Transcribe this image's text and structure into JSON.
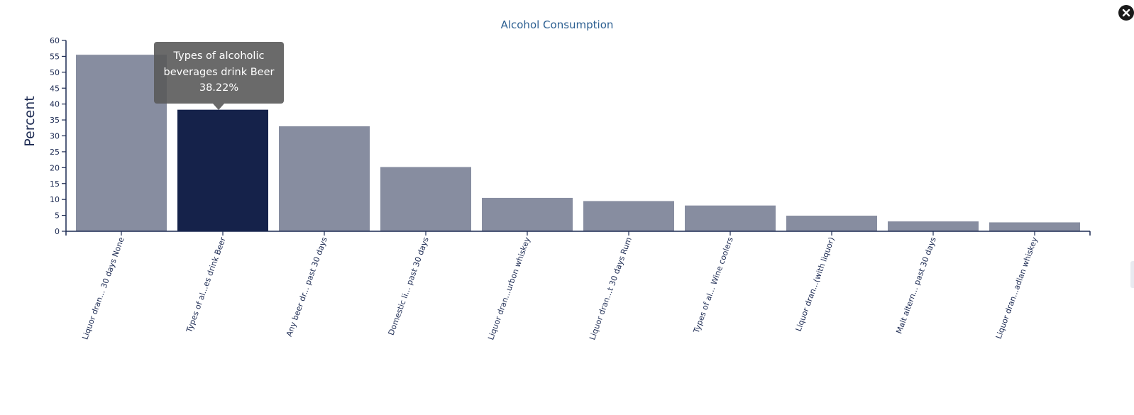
{
  "colors": {
    "bar": "#878da0",
    "bar_highlight": "#15224a",
    "axis": "#1c2a52",
    "title": "#2c5f91",
    "text": "#1c2a52"
  },
  "icons": {
    "close": "close-icon"
  },
  "tooltip": {
    "line1": "Types of alcoholic",
    "line2": "beverages drink Beer",
    "line3": "38.22%"
  },
  "chart_data": {
    "type": "bar",
    "title": "Alcohol Consumption",
    "xlabel": "",
    "ylabel": "Percent",
    "ylim": [
      0,
      60
    ],
    "yticks": [
      0,
      5,
      10,
      15,
      20,
      25,
      30,
      35,
      40,
      45,
      50,
      55,
      60
    ],
    "grid": false,
    "categories": [
      "Liquor dran... 30 days None",
      "Types of al...es drink Beer",
      "Any beer dr... past 30 days",
      "Domestic li... past 30 days",
      "Liquor dran...urbon whiskey",
      "Liquor dran...t 30 days Rum",
      "Types of al... Wine coolers",
      "Liquor dran...(with liquor)",
      "Malt altern... past 30 days",
      "Liquor dran...adian whiskey"
    ],
    "values": [
      55.5,
      38.22,
      33.0,
      20.2,
      10.5,
      9.5,
      8.1,
      4.9,
      3.1,
      2.8
    ],
    "highlighted_index": 1
  }
}
